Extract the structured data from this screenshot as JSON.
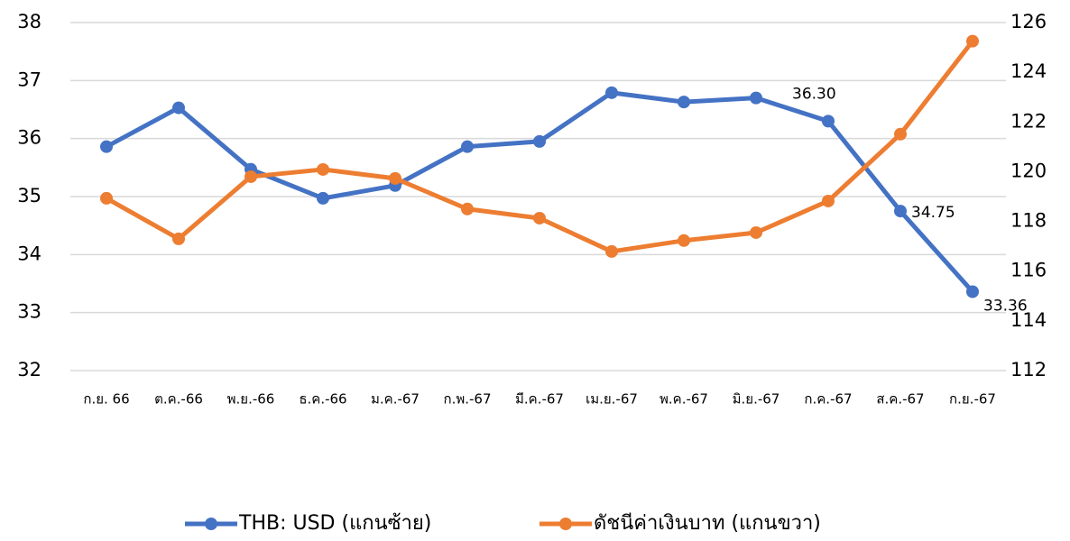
{
  "chart_data": {
    "type": "line",
    "categories": [
      "ก.ย. 66",
      "ต.ค.-66",
      "พ.ย.-66",
      "ธ.ค.-66",
      "ม.ค.-67",
      "ก.พ.-67",
      "มี.ค.-67",
      "เม.ย.-67",
      "พ.ค.-67",
      "มิ.ย.-67",
      "ก.ค.-67",
      "ส.ค.-67",
      "ก.ย.-67"
    ],
    "series": [
      {
        "name": "THB: USD (แกนซ้าย)",
        "color": "#4472c4",
        "values": [
          35.86,
          36.53,
          35.47,
          34.97,
          35.19,
          35.86,
          35.95,
          36.79,
          36.63,
          36.7,
          36.3,
          34.75,
          33.36
        ],
        "value_labels": [
          null,
          null,
          null,
          null,
          null,
          null,
          null,
          null,
          null,
          null,
          "36.30",
          "34.75",
          "33.36"
        ]
      },
      {
        "name": "ดัชนีค่าเงินบาท (แกนขวา)",
        "color": "#ed7d31",
        "axis": "y2",
        "values": [
          118.93,
          117.3,
          119.8,
          120.09,
          119.73,
          118.5,
          118.13,
          116.79,
          117.23,
          117.55,
          118.82,
          121.51,
          125.25
        ]
      }
    ],
    "ylim": [
      32,
      38
    ],
    "yticks": [
      32,
      33,
      34,
      35,
      36,
      37,
      38
    ],
    "y2lim": [
      112,
      126
    ],
    "y2ticks": [
      112,
      114,
      116,
      118,
      120,
      122,
      124,
      126
    ],
    "grid": true,
    "legend": "bottom"
  }
}
